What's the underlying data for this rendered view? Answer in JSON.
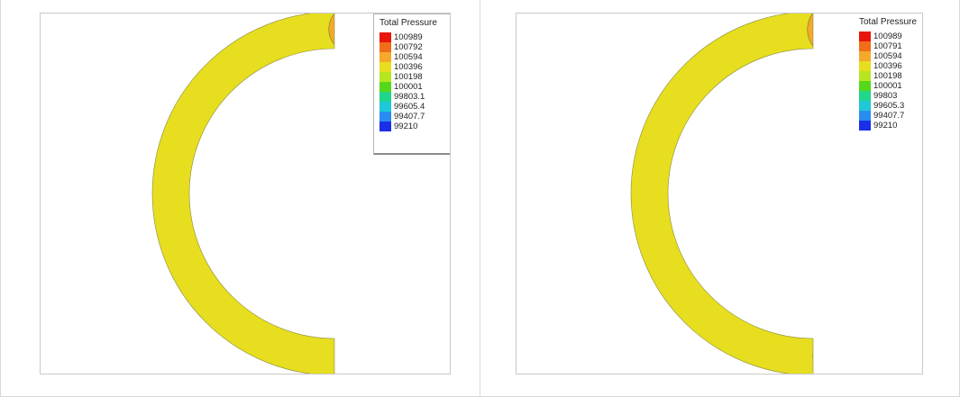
{
  "panels": [
    {
      "legend": {
        "title": "Total Pressure",
        "entries": [
          {
            "label": "100989",
            "color": "#e8160c"
          },
          {
            "label": "100792",
            "color": "#f26d19"
          },
          {
            "label": "100594",
            "color": "#f5a92a"
          },
          {
            "label": "100396",
            "color": "#e6de1f"
          },
          {
            "label": "100198",
            "color": "#b6e620"
          },
          {
            "label": "100001",
            "color": "#55d81a"
          },
          {
            "label": "99803.1",
            "color": "#1fd68a"
          },
          {
            "label": "99605.4",
            "color": "#1fc7d9"
          },
          {
            "label": "99407.7",
            "color": "#2a8cf0"
          },
          {
            "label": "99210",
            "color": "#1a2fe8"
          }
        ]
      }
    },
    {
      "legend": {
        "title": "Total Pressure",
        "entries": [
          {
            "label": "100989",
            "color": "#e8160c"
          },
          {
            "label": "100791",
            "color": "#f26d19"
          },
          {
            "label": "100594",
            "color": "#f5a92a"
          },
          {
            "label": "100396",
            "color": "#e6de1f"
          },
          {
            "label": "100198",
            "color": "#b6e620"
          },
          {
            "label": "100001",
            "color": "#55d81a"
          },
          {
            "label": "99803",
            "color": "#1fd68a"
          },
          {
            "label": "99605.3",
            "color": "#1fc7d9"
          },
          {
            "label": "99407.7",
            "color": "#2a8cf0"
          },
          {
            "label": "99210",
            "color": "#1a2fe8"
          }
        ]
      }
    }
  ]
}
